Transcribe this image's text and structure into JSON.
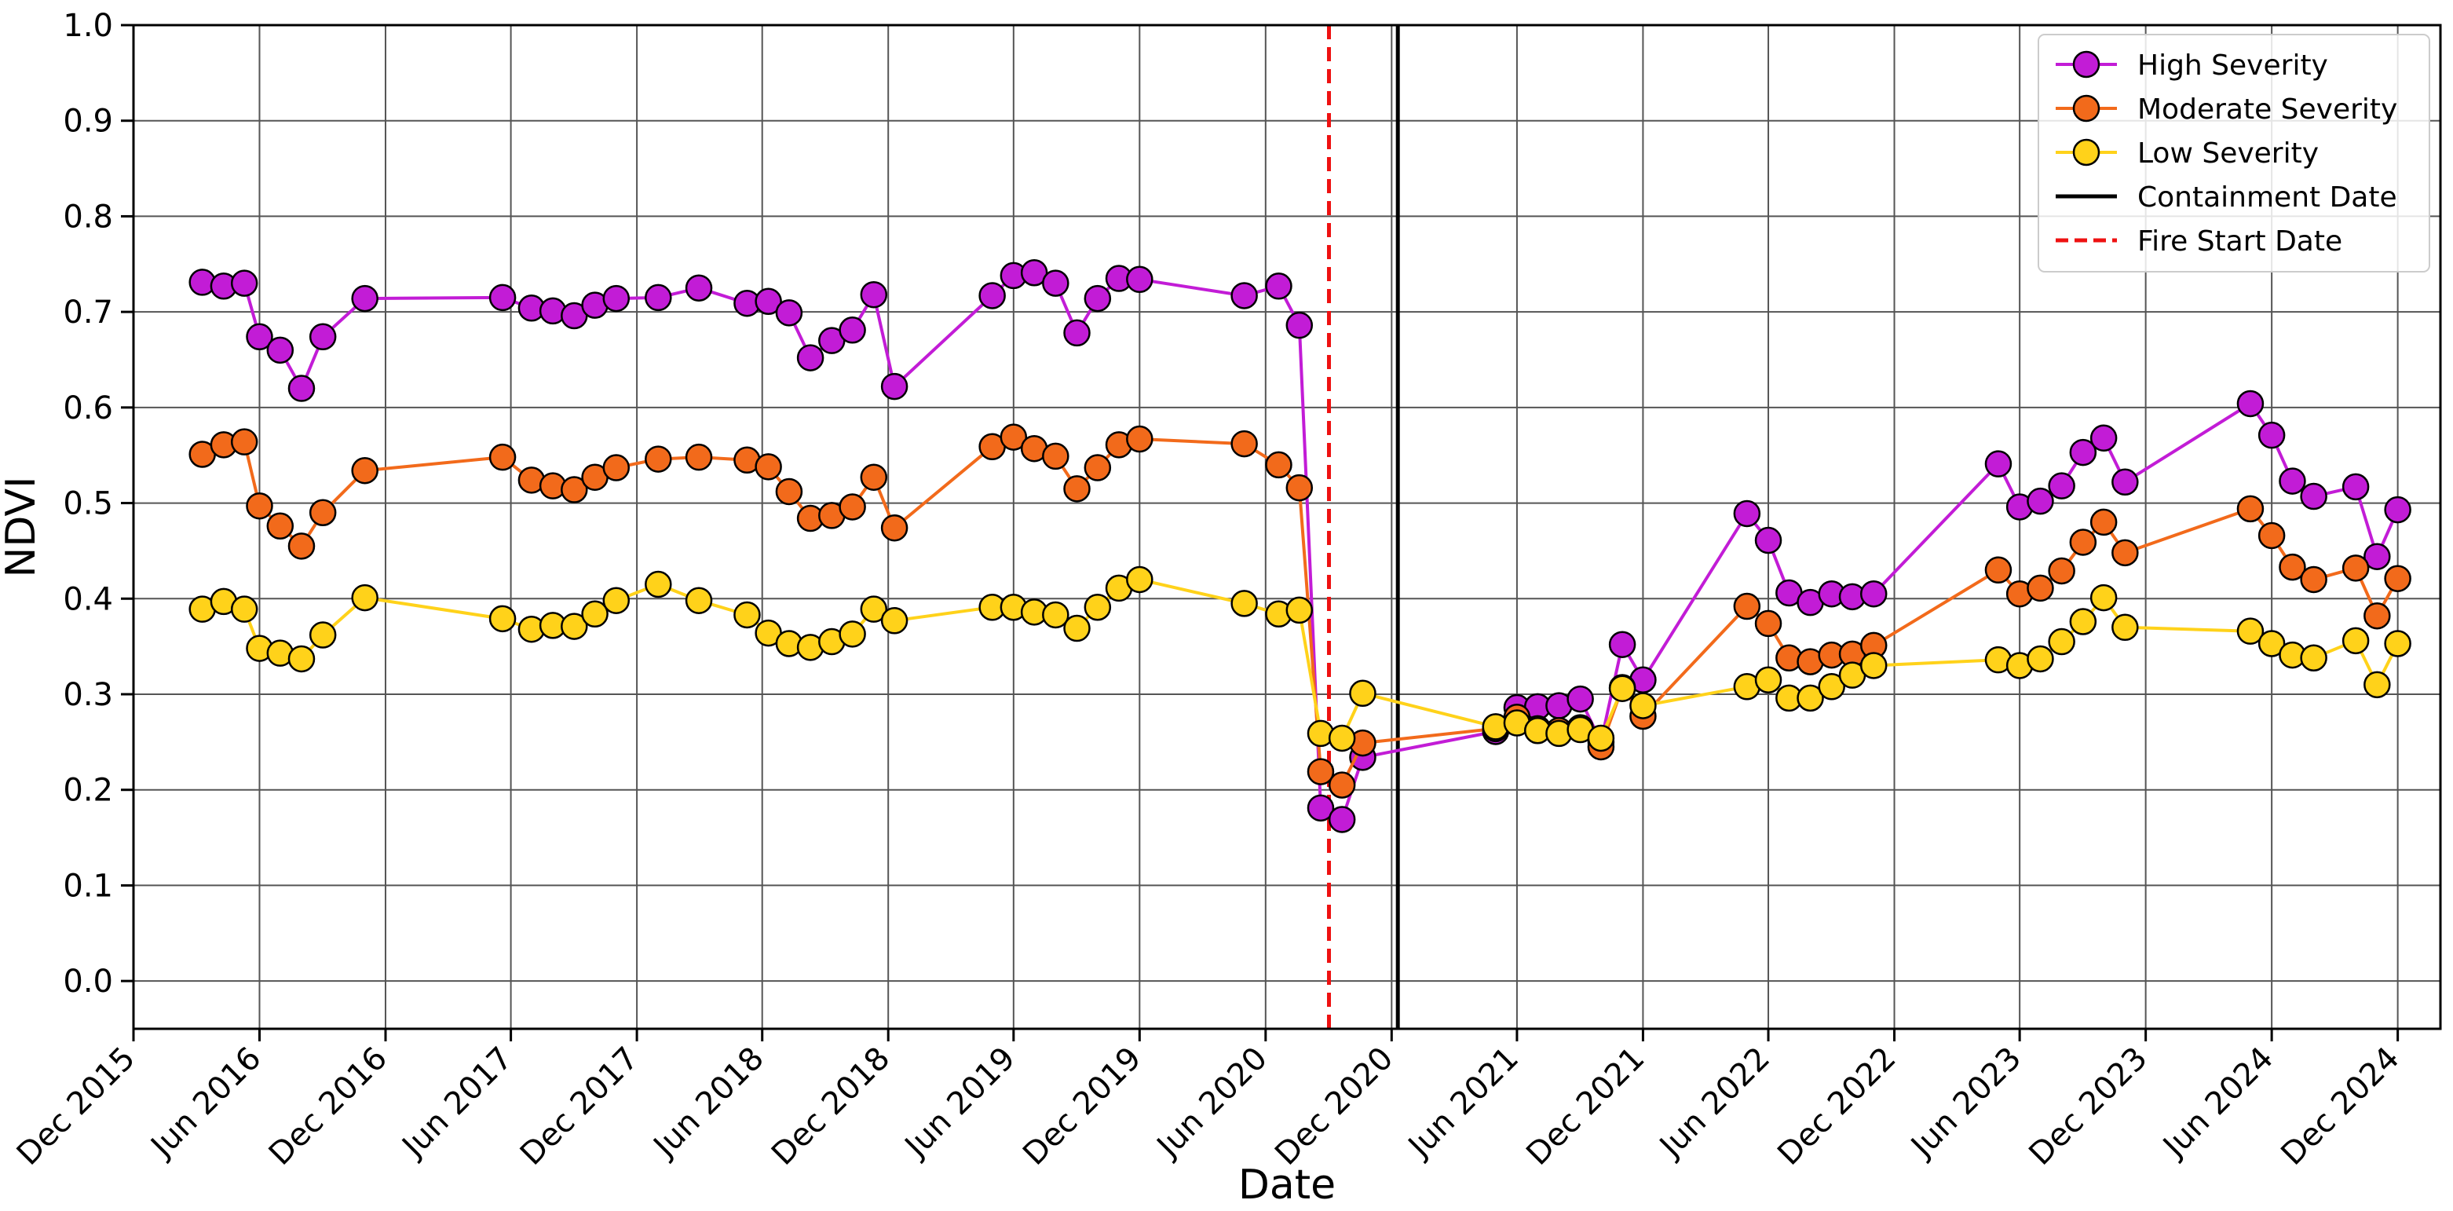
{
  "chart_data": {
    "type": "line",
    "xlabel": "Date",
    "ylabel": "NDVI",
    "xlim": [
      "2015-12-01",
      "2025-02-01"
    ],
    "ylim": [
      -0.05,
      1.0
    ],
    "grid": true,
    "legend_position": "top-right",
    "x_ticks": [
      {
        "date": "2015-12-01",
        "label": "Dec 2015"
      },
      {
        "date": "2016-06-01",
        "label": "Jun 2016"
      },
      {
        "date": "2016-12-01",
        "label": "Dec 2016"
      },
      {
        "date": "2017-06-01",
        "label": "Jun 2017"
      },
      {
        "date": "2017-12-01",
        "label": "Dec 2017"
      },
      {
        "date": "2018-06-01",
        "label": "Jun 2018"
      },
      {
        "date": "2018-12-01",
        "label": "Dec 2018"
      },
      {
        "date": "2019-06-01",
        "label": "Jun 2019"
      },
      {
        "date": "2019-12-01",
        "label": "Dec 2019"
      },
      {
        "date": "2020-06-01",
        "label": "Jun 2020"
      },
      {
        "date": "2020-12-01",
        "label": "Dec 2020"
      },
      {
        "date": "2021-06-01",
        "label": "Jun 2021"
      },
      {
        "date": "2021-12-01",
        "label": "Dec 2021"
      },
      {
        "date": "2022-06-01",
        "label": "Jun 2022"
      },
      {
        "date": "2022-12-01",
        "label": "Dec 2022"
      },
      {
        "date": "2023-06-01",
        "label": "Jun 2023"
      },
      {
        "date": "2023-12-01",
        "label": "Dec 2023"
      },
      {
        "date": "2024-06-01",
        "label": "Jun 2024"
      },
      {
        "date": "2024-12-01",
        "label": "Dec 2024"
      }
    ],
    "y_ticks": [
      {
        "value": 0.0,
        "label": "0.0"
      },
      {
        "value": 0.1,
        "label": "0.1"
      },
      {
        "value": 0.2,
        "label": "0.2"
      },
      {
        "value": 0.3,
        "label": "0.3"
      },
      {
        "value": 0.4,
        "label": "0.4"
      },
      {
        "value": 0.5,
        "label": "0.5"
      },
      {
        "value": 0.6,
        "label": "0.6"
      },
      {
        "value": 0.7,
        "label": "0.7"
      },
      {
        "value": 0.8,
        "label": "0.8"
      },
      {
        "value": 0.9,
        "label": "0.9"
      },
      {
        "value": 1.0,
        "label": "1.0"
      }
    ],
    "series": [
      {
        "name": "High Severity",
        "color": "#c21cd6",
        "points": [
          [
            "2016-03-10",
            0.731
          ],
          [
            "2016-04-10",
            0.727
          ],
          [
            "2016-05-10",
            0.73
          ],
          [
            "2016-06-01",
            0.674
          ],
          [
            "2016-07-01",
            0.66
          ],
          [
            "2016-08-01",
            0.62
          ],
          [
            "2016-09-01",
            0.674
          ],
          [
            "2016-11-01",
            0.714
          ],
          [
            "2017-05-20",
            0.715
          ],
          [
            "2017-07-01",
            0.704
          ],
          [
            "2017-08-01",
            0.701
          ],
          [
            "2017-09-01",
            0.696
          ],
          [
            "2017-10-01",
            0.707
          ],
          [
            "2017-11-01",
            0.714
          ],
          [
            "2018-01-01",
            0.715
          ],
          [
            "2018-03-01",
            0.725
          ],
          [
            "2018-05-10",
            0.709
          ],
          [
            "2018-06-10",
            0.711
          ],
          [
            "2018-07-10",
            0.699
          ],
          [
            "2018-08-10",
            0.652
          ],
          [
            "2018-09-10",
            0.67
          ],
          [
            "2018-10-10",
            0.681
          ],
          [
            "2018-11-10",
            0.718
          ],
          [
            "2018-12-10",
            0.622
          ],
          [
            "2019-05-01",
            0.717
          ],
          [
            "2019-06-01",
            0.738
          ],
          [
            "2019-07-01",
            0.741
          ],
          [
            "2019-08-01",
            0.73
          ],
          [
            "2019-09-01",
            0.678
          ],
          [
            "2019-10-01",
            0.714
          ],
          [
            "2019-11-01",
            0.735
          ],
          [
            "2019-12-01",
            0.734
          ],
          [
            "2020-05-01",
            0.717
          ],
          [
            "2020-06-20",
            0.727
          ],
          [
            "2020-07-20",
            0.686
          ],
          [
            "2020-08-20",
            0.181
          ],
          [
            "2020-09-20",
            0.169
          ],
          [
            "2020-10-20",
            0.234
          ],
          [
            "2021-05-01",
            0.261
          ],
          [
            "2021-06-01",
            0.286
          ],
          [
            "2021-07-01",
            0.287
          ],
          [
            "2021-08-01",
            0.288
          ],
          [
            "2021-09-01",
            0.295
          ],
          [
            "2021-10-01",
            0.25
          ],
          [
            "2021-11-01",
            0.352
          ],
          [
            "2021-12-01",
            0.315
          ],
          [
            "2022-05-01",
            0.489
          ],
          [
            "2022-06-01",
            0.461
          ],
          [
            "2022-07-01",
            0.406
          ],
          [
            "2022-08-01",
            0.396
          ],
          [
            "2022-09-01",
            0.405
          ],
          [
            "2022-10-01",
            0.402
          ],
          [
            "2022-11-01",
            0.405
          ],
          [
            "2023-05-01",
            0.541
          ],
          [
            "2023-06-01",
            0.496
          ],
          [
            "2023-07-01",
            0.502
          ],
          [
            "2023-08-01",
            0.518
          ],
          [
            "2023-09-01",
            0.553
          ],
          [
            "2023-10-01",
            0.568
          ],
          [
            "2023-11-01",
            0.522
          ],
          [
            "2024-05-01",
            0.604
          ],
          [
            "2024-06-01",
            0.571
          ],
          [
            "2024-07-01",
            0.523
          ],
          [
            "2024-08-01",
            0.507
          ],
          [
            "2024-10-01",
            0.517
          ],
          [
            "2024-11-01",
            0.444
          ],
          [
            "2024-12-01",
            0.493
          ]
        ]
      },
      {
        "name": "Moderate Severity",
        "color": "#f26a1b",
        "points": [
          [
            "2016-03-10",
            0.551
          ],
          [
            "2016-04-10",
            0.561
          ],
          [
            "2016-05-10",
            0.564
          ],
          [
            "2016-06-01",
            0.497
          ],
          [
            "2016-07-01",
            0.476
          ],
          [
            "2016-08-01",
            0.455
          ],
          [
            "2016-09-01",
            0.49
          ],
          [
            "2016-11-01",
            0.534
          ],
          [
            "2017-05-20",
            0.548
          ],
          [
            "2017-07-01",
            0.524
          ],
          [
            "2017-08-01",
            0.518
          ],
          [
            "2017-09-01",
            0.514
          ],
          [
            "2017-10-01",
            0.527
          ],
          [
            "2017-11-01",
            0.537
          ],
          [
            "2018-01-01",
            0.546
          ],
          [
            "2018-03-01",
            0.548
          ],
          [
            "2018-05-10",
            0.545
          ],
          [
            "2018-06-10",
            0.538
          ],
          [
            "2018-07-10",
            0.512
          ],
          [
            "2018-08-10",
            0.484
          ],
          [
            "2018-09-10",
            0.487
          ],
          [
            "2018-10-10",
            0.496
          ],
          [
            "2018-11-10",
            0.527
          ],
          [
            "2018-12-10",
            0.474
          ],
          [
            "2019-05-01",
            0.559
          ],
          [
            "2019-06-01",
            0.569
          ],
          [
            "2019-07-01",
            0.557
          ],
          [
            "2019-08-01",
            0.549
          ],
          [
            "2019-09-01",
            0.515
          ],
          [
            "2019-10-01",
            0.537
          ],
          [
            "2019-11-01",
            0.561
          ],
          [
            "2019-12-01",
            0.567
          ],
          [
            "2020-05-01",
            0.562
          ],
          [
            "2020-06-20",
            0.54
          ],
          [
            "2020-07-20",
            0.516
          ],
          [
            "2020-08-20",
            0.219
          ],
          [
            "2020-09-20",
            0.205
          ],
          [
            "2020-10-20",
            0.249
          ],
          [
            "2021-05-01",
            0.264
          ],
          [
            "2021-06-01",
            0.276
          ],
          [
            "2021-07-01",
            0.264
          ],
          [
            "2021-08-01",
            0.262
          ],
          [
            "2021-09-01",
            0.265
          ],
          [
            "2021-10-01",
            0.245
          ],
          [
            "2021-11-01",
            0.307
          ],
          [
            "2021-12-01",
            0.277
          ],
          [
            "2022-05-01",
            0.392
          ],
          [
            "2022-06-01",
            0.374
          ],
          [
            "2022-07-01",
            0.338
          ],
          [
            "2022-08-01",
            0.334
          ],
          [
            "2022-09-01",
            0.341
          ],
          [
            "2022-10-01",
            0.342
          ],
          [
            "2022-11-01",
            0.351
          ],
          [
            "2023-05-01",
            0.43
          ],
          [
            "2023-06-01",
            0.405
          ],
          [
            "2023-07-01",
            0.411
          ],
          [
            "2023-08-01",
            0.429
          ],
          [
            "2023-09-01",
            0.459
          ],
          [
            "2023-10-01",
            0.48
          ],
          [
            "2023-11-01",
            0.448
          ],
          [
            "2024-05-01",
            0.494
          ],
          [
            "2024-06-01",
            0.466
          ],
          [
            "2024-07-01",
            0.433
          ],
          [
            "2024-08-01",
            0.42
          ],
          [
            "2024-10-01",
            0.432
          ],
          [
            "2024-11-01",
            0.382
          ],
          [
            "2024-12-01",
            0.421
          ]
        ]
      },
      {
        "name": "Low Severity",
        "color": "#ffd21a",
        "points": [
          [
            "2016-03-10",
            0.389
          ],
          [
            "2016-04-10",
            0.397
          ],
          [
            "2016-05-10",
            0.389
          ],
          [
            "2016-06-01",
            0.348
          ],
          [
            "2016-07-01",
            0.343
          ],
          [
            "2016-08-01",
            0.337
          ],
          [
            "2016-09-01",
            0.362
          ],
          [
            "2016-11-01",
            0.401
          ],
          [
            "2017-05-20",
            0.379
          ],
          [
            "2017-07-01",
            0.368
          ],
          [
            "2017-08-01",
            0.372
          ],
          [
            "2017-09-01",
            0.371
          ],
          [
            "2017-10-01",
            0.384
          ],
          [
            "2017-11-01",
            0.398
          ],
          [
            "2018-01-01",
            0.415
          ],
          [
            "2018-03-01",
            0.398
          ],
          [
            "2018-05-10",
            0.383
          ],
          [
            "2018-06-10",
            0.364
          ],
          [
            "2018-07-10",
            0.353
          ],
          [
            "2018-08-10",
            0.349
          ],
          [
            "2018-09-10",
            0.355
          ],
          [
            "2018-10-10",
            0.363
          ],
          [
            "2018-11-10",
            0.389
          ],
          [
            "2018-12-10",
            0.377
          ],
          [
            "2019-05-01",
            0.391
          ],
          [
            "2019-06-01",
            0.391
          ],
          [
            "2019-07-01",
            0.386
          ],
          [
            "2019-08-01",
            0.383
          ],
          [
            "2019-09-01",
            0.369
          ],
          [
            "2019-10-01",
            0.391
          ],
          [
            "2019-11-01",
            0.411
          ],
          [
            "2019-12-01",
            0.42
          ],
          [
            "2020-05-01",
            0.395
          ],
          [
            "2020-06-20",
            0.384
          ],
          [
            "2020-07-20",
            0.388
          ],
          [
            "2020-08-20",
            0.259
          ],
          [
            "2020-09-20",
            0.254
          ],
          [
            "2020-10-20",
            0.301
          ],
          [
            "2021-05-01",
            0.266
          ],
          [
            "2021-06-01",
            0.27
          ],
          [
            "2021-07-01",
            0.262
          ],
          [
            "2021-08-01",
            0.259
          ],
          [
            "2021-09-01",
            0.263
          ],
          [
            "2021-10-01",
            0.254
          ],
          [
            "2021-11-01",
            0.306
          ],
          [
            "2021-12-01",
            0.288
          ],
          [
            "2022-05-01",
            0.308
          ],
          [
            "2022-06-01",
            0.315
          ],
          [
            "2022-07-01",
            0.296
          ],
          [
            "2022-08-01",
            0.296
          ],
          [
            "2022-09-01",
            0.308
          ],
          [
            "2022-10-01",
            0.32
          ],
          [
            "2022-11-01",
            0.33
          ],
          [
            "2023-05-01",
            0.336
          ],
          [
            "2023-06-01",
            0.33
          ],
          [
            "2023-07-01",
            0.337
          ],
          [
            "2023-08-01",
            0.355
          ],
          [
            "2023-09-01",
            0.376
          ],
          [
            "2023-10-01",
            0.401
          ],
          [
            "2023-11-01",
            0.37
          ],
          [
            "2024-05-01",
            0.366
          ],
          [
            "2024-06-01",
            0.353
          ],
          [
            "2024-07-01",
            0.341
          ],
          [
            "2024-08-01",
            0.338
          ],
          [
            "2024-10-01",
            0.356
          ],
          [
            "2024-11-01",
            0.31
          ],
          [
            "2024-12-01",
            0.353
          ]
        ]
      }
    ],
    "vertical_lines": [
      {
        "name": "Containment Date",
        "date": "2020-12-10",
        "color": "#000000",
        "style": "solid"
      },
      {
        "name": "Fire Start Date",
        "date": "2020-09-01",
        "color": "#ee1111",
        "style": "dashed"
      }
    ],
    "legend": [
      {
        "label": "High Severity",
        "color": "#c21cd6",
        "kind": "marker-line"
      },
      {
        "label": "Moderate Severity",
        "color": "#f26a1b",
        "kind": "marker-line"
      },
      {
        "label": "Low Severity",
        "color": "#ffd21a",
        "kind": "marker-line"
      },
      {
        "label": "Containment Date",
        "color": "#000000",
        "kind": "solid-line"
      },
      {
        "label": "Fire Start Date",
        "color": "#ee1111",
        "kind": "dashed-line"
      }
    ]
  }
}
